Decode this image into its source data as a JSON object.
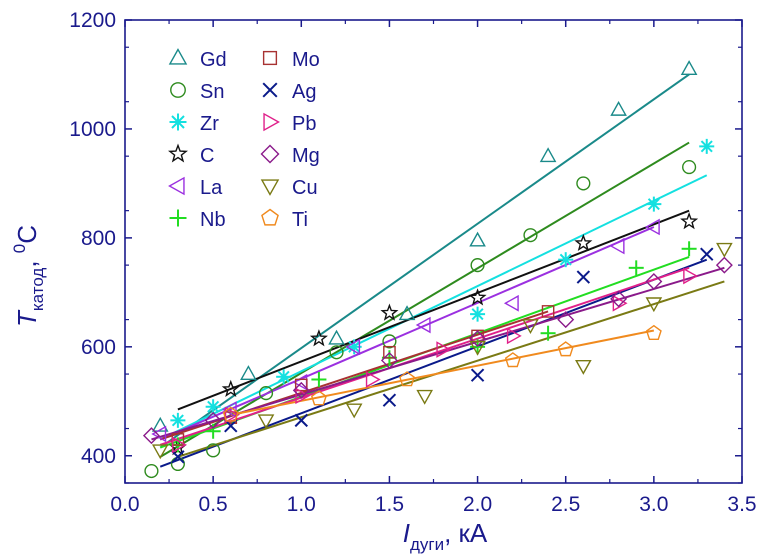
{
  "chart_data": {
    "type": "scatter",
    "xlabel": {
      "main": "I",
      "sub": "дуги",
      "suffix": ", кА"
    },
    "ylabel": {
      "main": "T",
      "sub": "катод",
      "suffix": ", ",
      "sup": "0",
      "unit": "C"
    },
    "xlim": [
      0.0,
      3.5
    ],
    "ylim": [
      350,
      1200
    ],
    "xticks": [
      0.0,
      0.5,
      1.0,
      1.5,
      2.0,
      2.5,
      3.0,
      3.5
    ],
    "xtick_labels": [
      "0.0",
      "0.5",
      "1.0",
      "1.5",
      "2.0",
      "2.5",
      "3.0",
      "3.5"
    ],
    "yticks": [
      400,
      600,
      800,
      1000,
      1200
    ],
    "ytick_labels": [
      "400",
      "600",
      "800",
      "1000",
      "1200"
    ],
    "grid": false,
    "legend_position": "top-left",
    "series": [
      {
        "name": "Gd",
        "marker": "triangle-up",
        "color": "#1a8a8a",
        "points": [
          [
            0.2,
            455
          ],
          [
            0.7,
            550
          ],
          [
            1.2,
            615
          ],
          [
            1.6,
            660
          ],
          [
            2.0,
            795
          ],
          [
            2.4,
            950
          ],
          [
            2.8,
            1035
          ],
          [
            3.2,
            1110
          ]
        ],
        "fit": [
          [
            0.2,
            415
          ],
          [
            3.2,
            1100
          ]
        ]
      },
      {
        "name": "Sn",
        "marker": "circle",
        "color": "#2e8b1e",
        "points": [
          [
            0.15,
            372
          ],
          [
            0.3,
            385
          ],
          [
            0.5,
            410
          ],
          [
            0.8,
            515
          ],
          [
            1.2,
            590
          ],
          [
            1.5,
            610
          ],
          [
            2.0,
            750
          ],
          [
            2.3,
            805
          ],
          [
            2.6,
            900
          ],
          [
            3.2,
            930
          ]
        ],
        "fit": [
          [
            0.2,
            398
          ],
          [
            3.2,
            975
          ]
        ]
      },
      {
        "name": "Zr",
        "marker": "asterisk",
        "color": "#14e0e0",
        "points": [
          [
            0.3,
            465
          ],
          [
            0.5,
            490
          ],
          [
            0.9,
            545
          ],
          [
            1.3,
            600
          ],
          [
            2.0,
            660
          ],
          [
            2.5,
            760
          ],
          [
            3.0,
            862
          ],
          [
            3.3,
            968
          ]
        ],
        "fit": [
          [
            0.2,
            430
          ],
          [
            3.3,
            915
          ]
        ]
      },
      {
        "name": "C",
        "marker": "star",
        "color": "#111111",
        "points": [
          [
            0.3,
            415
          ],
          [
            0.6,
            522
          ],
          [
            1.1,
            615
          ],
          [
            1.5,
            662
          ],
          [
            2.0,
            690
          ],
          [
            2.6,
            790
          ],
          [
            3.2,
            830
          ]
        ],
        "fit": [
          [
            0.3,
            485
          ],
          [
            3.2,
            850
          ]
        ]
      },
      {
        "name": "La",
        "marker": "triangle-left",
        "color": "#9b30e0",
        "points": [
          [
            0.2,
            440
          ],
          [
            0.6,
            485
          ],
          [
            1.0,
            535
          ],
          [
            1.3,
            600
          ],
          [
            1.7,
            640
          ],
          [
            2.2,
            680
          ],
          [
            2.8,
            785
          ],
          [
            3.0,
            820
          ]
        ],
        "fit": [
          [
            0.2,
            430
          ],
          [
            3.0,
            820
          ]
        ]
      },
      {
        "name": "Nb",
        "marker": "plus",
        "color": "#22dd22",
        "points": [
          [
            0.3,
            420
          ],
          [
            0.5,
            445
          ],
          [
            1.1,
            540
          ],
          [
            1.5,
            580
          ],
          [
            2.0,
            600
          ],
          [
            2.4,
            625
          ],
          [
            2.9,
            745
          ],
          [
            3.2,
            780
          ]
        ],
        "fit": [
          [
            0.2,
            415
          ],
          [
            3.2,
            765
          ]
        ]
      },
      {
        "name": "Mo",
        "marker": "square",
        "color": "#a83232",
        "points": [
          [
            0.3,
            430
          ],
          [
            0.6,
            470
          ],
          [
            1.0,
            530
          ],
          [
            1.5,
            590
          ],
          [
            2.0,
            620
          ],
          [
            2.4,
            665
          ]
        ],
        "fit": [
          [
            0.2,
            430
          ],
          [
            2.4,
            665
          ]
        ]
      },
      {
        "name": "Ag",
        "marker": "x",
        "color": "#0a1a8a",
        "points": [
          [
            0.3,
            398
          ],
          [
            0.6,
            455
          ],
          [
            1.0,
            465
          ],
          [
            1.5,
            502
          ],
          [
            2.0,
            548
          ],
          [
            2.6,
            728
          ],
          [
            3.3,
            770
          ]
        ],
        "fit": [
          [
            0.2,
            380
          ],
          [
            3.3,
            760
          ]
        ]
      },
      {
        "name": "Pb",
        "marker": "triangle-right",
        "color": "#e0208a",
        "points": [
          [
            0.3,
            420
          ],
          [
            0.6,
            475
          ],
          [
            1.0,
            510
          ],
          [
            1.4,
            540
          ],
          [
            1.8,
            595
          ],
          [
            2.2,
            620
          ],
          [
            2.8,
            680
          ],
          [
            3.2,
            730
          ]
        ],
        "fit": [
          [
            0.2,
            420
          ],
          [
            3.2,
            745
          ]
        ]
      },
      {
        "name": "Mg",
        "marker": "diamond",
        "color": "#8a1a8a",
        "points": [
          [
            0.15,
            437
          ],
          [
            0.5,
            465
          ],
          [
            1.0,
            520
          ],
          [
            1.5,
            575
          ],
          [
            2.0,
            615
          ],
          [
            2.5,
            650
          ],
          [
            2.8,
            688
          ],
          [
            3.0,
            720
          ],
          [
            3.4,
            750
          ]
        ],
        "fit": [
          [
            0.15,
            430
          ],
          [
            3.4,
            745
          ]
        ]
      },
      {
        "name": "Cu",
        "marker": "triangle-down",
        "color": "#7a7a14",
        "points": [
          [
            0.2,
            410
          ],
          [
            0.8,
            465
          ],
          [
            1.3,
            485
          ],
          [
            1.7,
            510
          ],
          [
            2.0,
            600
          ],
          [
            2.3,
            640
          ],
          [
            2.6,
            565
          ],
          [
            3.0,
            680
          ],
          [
            3.4,
            780
          ]
        ],
        "fit": [
          [
            0.3,
            398
          ],
          [
            3.4,
            720
          ]
        ]
      },
      {
        "name": "Ti",
        "marker": "pentagon",
        "color": "#f08a1e",
        "points": [
          [
            0.6,
            475
          ],
          [
            1.1,
            505
          ],
          [
            1.6,
            540
          ],
          [
            2.2,
            575
          ],
          [
            2.5,
            595
          ],
          [
            3.0,
            625
          ]
        ],
        "fit": [
          [
            0.6,
            475
          ],
          [
            3.0,
            630
          ]
        ]
      }
    ]
  }
}
